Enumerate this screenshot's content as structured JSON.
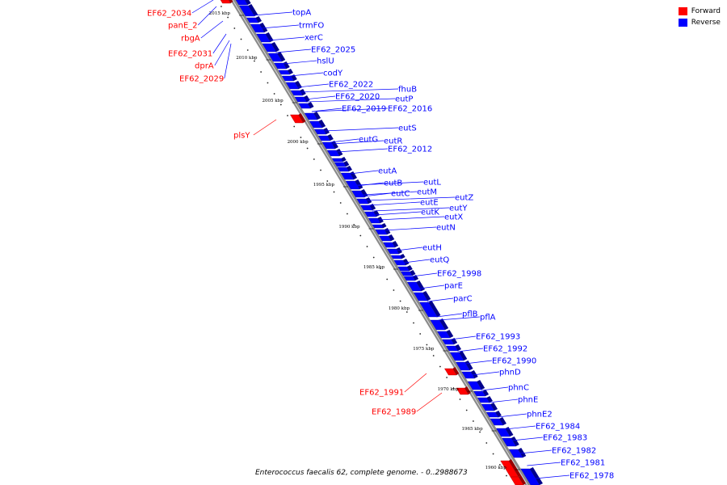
{
  "legend": [
    {
      "label": "Forward",
      "color": "#ff0000"
    },
    {
      "label": "Reverse",
      "color": "#0000ff"
    }
  ],
  "caption": "Enterococcus faecalis 62, complete genome. - 0..2988673",
  "colors": {
    "forward": "#ff0000",
    "reverse": "#0000ff",
    "backbone": "#808080"
  },
  "ticks": [
    "2015 kbp",
    "2010 kbp",
    "2005 kbp",
    "2000 kbp",
    "1995 kbp",
    "1990 kbp",
    "1985 kbp",
    "1980 kbp",
    "1975 kbp",
    "1970 kbp",
    "1965 kbp",
    "1960 kbp"
  ],
  "genes_forward": [
    "EF62_2034",
    "panE_2",
    "rbgA",
    "EF62_2031",
    "dprA",
    "EF62_2029",
    "plsY",
    "EF62_1991",
    "EF62_1989"
  ],
  "genes_reverse": [
    "topA",
    "trmFO",
    "xerC",
    "EF62_2025",
    "hslU",
    "codY",
    "EF62_2022",
    "EF62_2020",
    "EF62_2019",
    "fhuB",
    "eutP",
    "EF62_2016",
    "eutS",
    "eutG",
    "eutR",
    "EF62_2012",
    "eutA",
    "eutB",
    "eutC",
    "eutL",
    "eutM",
    "eutE",
    "eutK",
    "eutZ",
    "eutY",
    "eutX",
    "eutN",
    "eutH",
    "eutQ",
    "EF62_1998",
    "parE",
    "parC",
    "pflB",
    "pflA",
    "EF62_1993",
    "EF62_1992",
    "EF62_1990",
    "phnD",
    "phnC",
    "phnE",
    "phnE2",
    "EF62_1984",
    "EF62_1983",
    "EF62_1982",
    "EF62_1981",
    "EF62_1978"
  ]
}
